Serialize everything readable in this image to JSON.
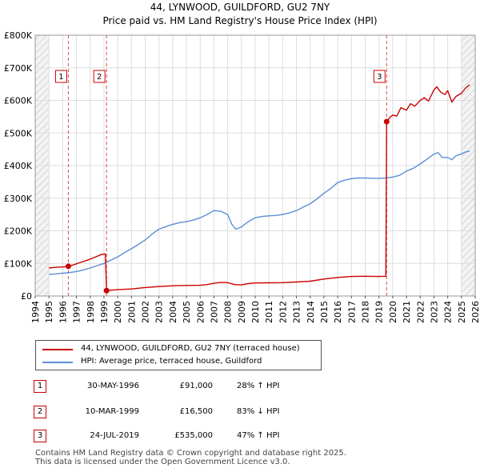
{
  "header": {
    "title_line1": "44, LYNWOOD, GUILDFORD, GU2 7NY",
    "title_line2": "Price paid vs. HM Land Registry's House Price Index (HPI)"
  },
  "colors": {
    "price_line": "#cc0000",
    "hpi_line": "#5b8fd6",
    "grid": "#dddddd",
    "plot_bg": "#ffffff",
    "hatch": "#e8e8e8",
    "axis": "#333333"
  },
  "legend": {
    "items": [
      {
        "label": "44, LYNWOOD, GUILDFORD, GU2 7NY (terraced house)",
        "color": "#cc0000"
      },
      {
        "label": "HPI: Average price, terraced house, Guildford",
        "color": "#5b8fd6"
      }
    ]
  },
  "sales": [
    {
      "num": "1",
      "date": "30-MAY-1996",
      "price": "£91,000",
      "relation": "28% ↑ HPI"
    },
    {
      "num": "2",
      "date": "10-MAR-1999",
      "price": "£16,500",
      "relation": "83% ↓ HPI"
    },
    {
      "num": "3",
      "date": "24-JUL-2019",
      "price": "£535,000",
      "relation": "47% ↑ HPI"
    }
  ],
  "footer": {
    "line1": "Contains HM Land Registry data © Crown copyright and database right 2025.",
    "line2": "This data is licensed under the Open Government Licence v3.0."
  },
  "chart_data": {
    "type": "line",
    "title": "Price paid vs. HM Land Registry's House Price Index (HPI)",
    "xlabel": "",
    "ylabel": "",
    "xlim": [
      1994,
      2026
    ],
    "ylim": [
      0,
      800000
    ],
    "x_ticks": [
      1994,
      1995,
      1996,
      1997,
      1998,
      1999,
      2000,
      2001,
      2002,
      2003,
      2004,
      2005,
      2006,
      2007,
      2008,
      2009,
      2010,
      2011,
      2012,
      2013,
      2014,
      2015,
      2016,
      2017,
      2018,
      2019,
      2020,
      2021,
      2022,
      2023,
      2024,
      2025,
      2026
    ],
    "y_ticks": [
      {
        "value": 0,
        "label": "£0"
      },
      {
        "value": 100000,
        "label": "£100K"
      },
      {
        "value": 200000,
        "label": "£200K"
      },
      {
        "value": 300000,
        "label": "£300K"
      },
      {
        "value": 400000,
        "label": "£400K"
      },
      {
        "value": 500000,
        "label": "£500K"
      },
      {
        "value": 600000,
        "label": "£600K"
      },
      {
        "value": 700000,
        "label": "£700K"
      },
      {
        "value": 800000,
        "label": "£800K"
      }
    ],
    "hatched_ranges": [
      [
        1994,
        1995.0
      ],
      [
        2025.0,
        2026
      ]
    ],
    "sale_markers": [
      {
        "label": "1",
        "x": 1996.41,
        "y": 91000
      },
      {
        "label": "2",
        "x": 1999.19,
        "y": 16500
      },
      {
        "label": "3",
        "x": 2019.56,
        "y": 535000
      }
    ],
    "series": [
      {
        "name": "44, LYNWOOD, GUILDFORD, GU2 7NY (terraced house)",
        "color": "#cc0000",
        "x": [
          1995.0,
          1995.5,
          1996.0,
          1996.41,
          1996.8,
          1997.3,
          1997.8,
          1998.3,
          1998.8,
          1999.1,
          1999.19,
          1999.3,
          2000.0,
          2001.0,
          2002.0,
          2003.0,
          2004.0,
          2005.0,
          2006.0,
          2006.5,
          2007.0,
          2007.5,
          2008.0,
          2008.5,
          2009.0,
          2009.5,
          2010.0,
          2011.0,
          2012.0,
          2013.0,
          2014.0,
          2015.0,
          2016.0,
          2017.0,
          2018.0,
          2019.0,
          2019.5,
          2019.56,
          2019.8,
          2020.0,
          2020.3,
          2020.6,
          2021.0,
          2021.3,
          2021.6,
          2022.0,
          2022.3,
          2022.6,
          2023.0,
          2023.2,
          2023.5,
          2023.8,
          2024.0,
          2024.3,
          2024.6,
          2025.0,
          2025.3,
          2025.6
        ],
        "y": [
          86000,
          88000,
          89000,
          91000,
          96000,
          103000,
          110000,
          118000,
          127000,
          129000,
          16500,
          17500,
          19500,
          21500,
          26000,
          29000,
          31500,
          32500,
          33000,
          35000,
          39000,
          41500,
          41000,
          35000,
          34000,
          38000,
          40000,
          40500,
          41000,
          43000,
          45500,
          52000,
          57000,
          60000,
          60500,
          60000,
          60500,
          535000,
          548000,
          555000,
          552000,
          578000,
          570000,
          590000,
          582000,
          600000,
          608000,
          598000,
          632000,
          642000,
          625000,
          618000,
          630000,
          595000,
          612000,
          622000,
          638000,
          648000
        ]
      },
      {
        "name": "HPI: Average price, terraced house, Guildford",
        "color": "#5b8fd6",
        "x": [
          1995.0,
          1995.5,
          1996.0,
          1996.5,
          1997.0,
          1997.5,
          1998.0,
          1998.5,
          1999.0,
          1999.5,
          2000.0,
          2000.5,
          2001.0,
          2001.5,
          2002.0,
          2002.5,
          2003.0,
          2003.5,
          2004.0,
          2004.5,
          2005.0,
          2005.5,
          2006.0,
          2006.5,
          2007.0,
          2007.5,
          2008.0,
          2008.3,
          2008.6,
          2009.0,
          2009.5,
          2010.0,
          2010.5,
          2011.0,
          2011.5,
          2012.0,
          2012.5,
          2013.0,
          2013.5,
          2014.0,
          2014.5,
          2015.0,
          2015.5,
          2016.0,
          2016.5,
          2017.0,
          2017.5,
          2018.0,
          2018.5,
          2019.0,
          2019.5,
          2020.0,
          2020.5,
          2021.0,
          2021.5,
          2022.0,
          2022.5,
          2023.0,
          2023.3,
          2023.6,
          2024.0,
          2024.3,
          2024.6,
          2025.0,
          2025.3,
          2025.6
        ],
        "y": [
          66000,
          68000,
          70000,
          72000,
          75000,
          80000,
          86000,
          93000,
          100000,
          110000,
          120000,
          133000,
          145000,
          158000,
          172000,
          190000,
          205000,
          213000,
          220000,
          225000,
          228000,
          233000,
          240000,
          250000,
          262000,
          260000,
          250000,
          220000,
          205000,
          212000,
          228000,
          240000,
          244000,
          246000,
          247000,
          250000,
          255000,
          262000,
          273000,
          283000,
          298000,
          315000,
          330000,
          348000,
          355000,
          360000,
          362000,
          362000,
          361000,
          361000,
          362000,
          365000,
          370000,
          383000,
          392000,
          405000,
          420000,
          435000,
          440000,
          425000,
          425000,
          418000,
          430000,
          436000,
          442000,
          444000
        ]
      }
    ]
  }
}
